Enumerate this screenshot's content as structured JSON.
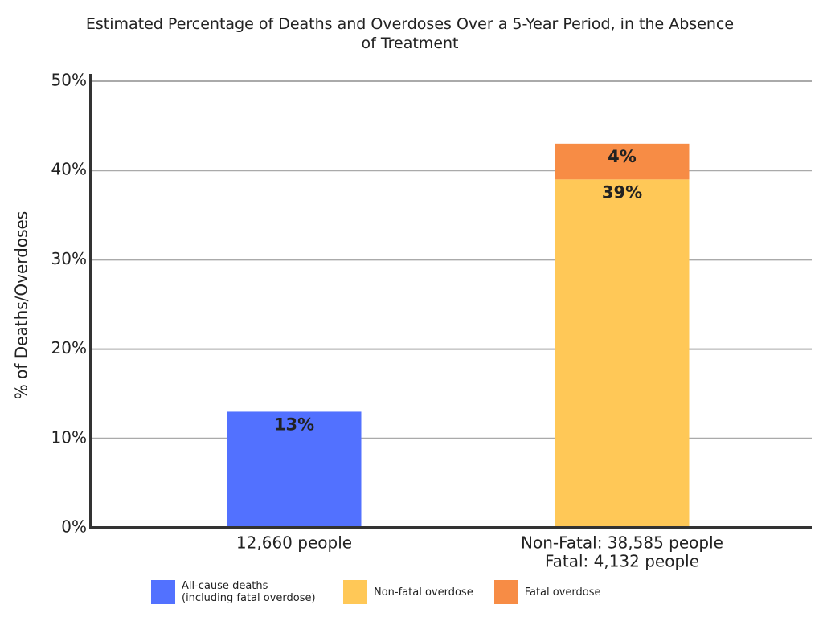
{
  "chart_data": {
    "type": "stacked-bar",
    "title": "Estimated Percentage of Deaths and Overdoses Over a 5-Year Period, in the Absence of Treatment",
    "y_label": "% of Deaths/Overdoses",
    "categories": [
      [
        "12,660 people"
      ],
      [
        "Non-Fatal: 38,585 people",
        "Fatal: 4,132 people"
      ]
    ],
    "series": [
      {
        "name": "All-cause deaths (including fatal overdose)",
        "color": "#5271ff",
        "values": [
          13,
          null
        ],
        "value_labels": [
          "13%",
          null
        ]
      },
      {
        "name": "Non-fatal overdose",
        "color": "#ffc857",
        "values": [
          null,
          39
        ],
        "value_labels": [
          null,
          "39%"
        ]
      },
      {
        "name": "Fatal overdose",
        "color": "#f78c45",
        "values": [
          null,
          4
        ],
        "value_labels": [
          null,
          "4%"
        ]
      }
    ],
    "ylim": [
      0,
      50
    ],
    "yticks": [
      {
        "value": 0,
        "label": "0%"
      },
      {
        "value": 10,
        "label": "10%"
      },
      {
        "value": 20,
        "label": "20%"
      },
      {
        "value": 30,
        "label": "30%"
      },
      {
        "value": 40,
        "label": "40%"
      },
      {
        "value": 50,
        "label": "50%"
      }
    ],
    "grid": true
  }
}
